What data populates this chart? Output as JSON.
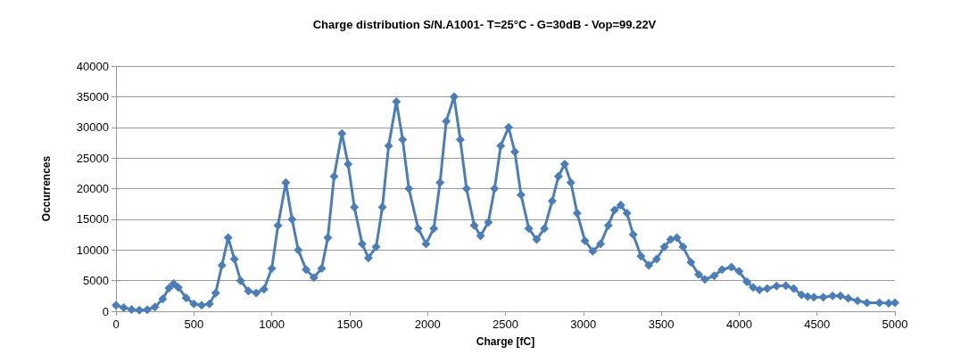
{
  "chart_data": {
    "type": "line",
    "title": "Charge distribution S/N.A1001- T=25°C - G=30dB - Vop=99.22V",
    "xlabel": "Charge [fC]",
    "ylabel": "Occurrences",
    "x": [
      0,
      50,
      100,
      150,
      200,
      250,
      300,
      340,
      370,
      400,
      450,
      500,
      550,
      600,
      640,
      680,
      720,
      760,
      800,
      850,
      900,
      950,
      1000,
      1040,
      1090,
      1130,
      1170,
      1220,
      1270,
      1320,
      1360,
      1400,
      1450,
      1490,
      1530,
      1580,
      1620,
      1670,
      1710,
      1750,
      1800,
      1840,
      1880,
      1940,
      1990,
      2040,
      2080,
      2120,
      2170,
      2210,
      2250,
      2300,
      2340,
      2390,
      2430,
      2470,
      2520,
      2560,
      2600,
      2650,
      2700,
      2750,
      2800,
      2840,
      2880,
      2920,
      2960,
      3010,
      3060,
      3110,
      3160,
      3200,
      3240,
      3280,
      3320,
      3370,
      3420,
      3470,
      3520,
      3560,
      3600,
      3640,
      3690,
      3740,
      3780,
      3840,
      3890,
      3950,
      4000,
      4050,
      4090,
      4130,
      4180,
      4240,
      4300,
      4350,
      4400,
      4440,
      4480,
      4540,
      4600,
      4650,
      4700,
      4760,
      4820,
      4900,
      4960,
      5000
    ],
    "series": [
      {
        "color": "#4a7ebb",
        "values": [
          1000,
          600,
          300,
          200,
          250,
          700,
          2000,
          3800,
          4500,
          3900,
          2200,
          1200,
          1000,
          1200,
          3000,
          7500,
          12000,
          8500,
          5000,
          3300,
          3000,
          3600,
          7000,
          14000,
          21000,
          15000,
          10000,
          6800,
          5500,
          7000,
          12000,
          22000,
          29000,
          24000,
          17000,
          11000,
          8700,
          10500,
          17000,
          27000,
          34200,
          28000,
          20000,
          13500,
          11000,
          13500,
          21000,
          31000,
          35000,
          28000,
          20000,
          14000,
          12300,
          14500,
          20000,
          27000,
          30000,
          26000,
          19000,
          13500,
          11700,
          13500,
          18000,
          22000,
          24000,
          21000,
          16000,
          11500,
          9800,
          11000,
          14000,
          16500,
          17300,
          16000,
          12500,
          9000,
          7500,
          8500,
          10500,
          11700,
          12000,
          10500,
          8000,
          6000,
          5200,
          5800,
          6800,
          7200,
          6500,
          4800,
          3900,
          3500,
          3700,
          4100,
          4200,
          3700,
          2700,
          2400,
          2300,
          2300,
          2500,
          2500,
          2100,
          1700,
          1400,
          1400,
          1300,
          1400
        ]
      }
    ],
    "xlim": [
      0,
      5000
    ],
    "xticks": [
      0,
      500,
      1000,
      1500,
      2000,
      2500,
      3000,
      3500,
      4000,
      4500,
      5000
    ],
    "ylim": [
      0,
      40000
    ],
    "yticks": [
      0,
      5000,
      10000,
      15000,
      20000,
      25000,
      30000,
      35000,
      40000
    ],
    "grid": "y",
    "marker": "diamond",
    "line_style": "solid"
  }
}
